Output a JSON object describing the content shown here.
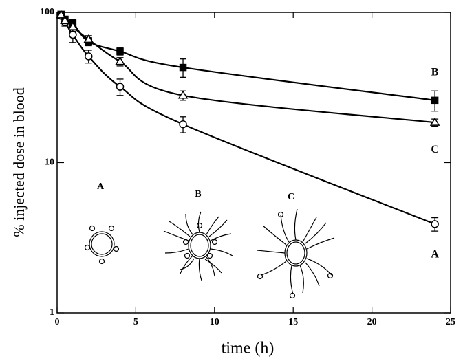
{
  "chart_data": {
    "type": "line",
    "x_label": "time (h)",
    "y_label": "% injected dose in blood",
    "xlim": [
      0,
      25
    ],
    "xticks": [
      0,
      5,
      10,
      15,
      20,
      25
    ],
    "ylim": [
      1,
      100
    ],
    "yticks": [
      1,
      10,
      100
    ],
    "y_scale": "log",
    "series": [
      {
        "name": "A",
        "marker": "open-circle",
        "color": "#000000",
        "x": [
          0.25,
          0.5,
          1,
          2,
          4,
          8,
          24
        ],
        "values": [
          95,
          86,
          71,
          51,
          32,
          18,
          3.9
        ],
        "errors": [
          4,
          5,
          8,
          5,
          4,
          2.2,
          0.4
        ]
      },
      {
        "name": "B",
        "marker": "filled-square",
        "color": "#000000",
        "x": [
          0.25,
          0.5,
          1,
          2,
          4,
          8,
          24
        ],
        "values": [
          97,
          90,
          85,
          64,
          55,
          43,
          26
        ],
        "errors": [
          3,
          4,
          5,
          4,
          3,
          6,
          4
        ]
      },
      {
        "name": "C",
        "marker": "open-triangle",
        "color": "#000000",
        "x": [
          0.25,
          0.5,
          1,
          2,
          4,
          8,
          24
        ],
        "values": [
          96,
          88,
          80,
          66,
          47,
          28,
          18.5
        ],
        "errors": [
          3,
          4,
          5,
          4,
          3,
          2,
          1
        ]
      }
    ],
    "inset_labels": [
      "A",
      "B",
      "C"
    ]
  }
}
